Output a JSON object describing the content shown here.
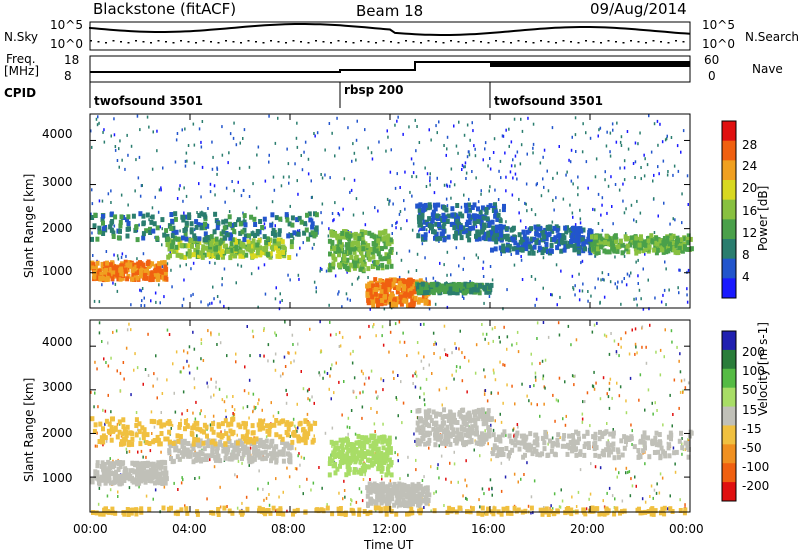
{
  "header": {
    "radar": "Blackstone (fitACF)",
    "beam": "Beam 18",
    "date": "09/Aug/2014"
  },
  "top_panels": {
    "nsky_label": "N.Sky",
    "nsearch_label": "N.Search",
    "nsky_ticks": [
      "10^5",
      "10^0"
    ],
    "nsearch_ticks": [
      "10^5",
      "10^0"
    ],
    "freq_label_line1": "Freq.",
    "freq_label_line2": "[MHz]",
    "freq_ticks": [
      "18",
      "8"
    ],
    "nave_label": "Nave",
    "nave_ticks": [
      "60",
      "0"
    ],
    "cpid_label": "CPID",
    "cpid_segments": [
      {
        "name": "twofsound 3501",
        "start_h": 0,
        "end_h": 10
      },
      {
        "name": "rbsp 200",
        "start_h": 10,
        "end_h": 16
      },
      {
        "name": "twofsound 3501",
        "start_h": 16,
        "end_h": 24
      }
    ]
  },
  "chart_data": [
    {
      "type": "heatmap",
      "title": "",
      "quantity": "Power",
      "ylabel": "Slant Range [km]",
      "ylim": [
        200,
        4600
      ],
      "y_ticks": [
        "4000",
        "3000",
        "2000",
        "1000"
      ],
      "y_tick_values": [
        4000,
        3000,
        2000,
        1000
      ],
      "colorbar_label": "Power [dB]",
      "colorbar_ticks": [
        "28",
        "24",
        "20",
        "16",
        "12",
        "8",
        "4"
      ],
      "colorbar_colors": [
        "#1a1aff",
        "#2255cc",
        "#2a7d6e",
        "#4aa04a",
        "#88c040",
        "#d8d820",
        "#f0a020",
        "#f06010",
        "#e01010"
      ],
      "bands": [
        {
          "h": [
            0,
            3
          ],
          "r": [
            900,
            1300
          ],
          "v": 26
        },
        {
          "h": [
            3,
            8
          ],
          "r": [
            1400,
            1800
          ],
          "v": 16
        },
        {
          "h": [
            0,
            9
          ],
          "r": [
            1800,
            2400
          ],
          "v": 8
        },
        {
          "h": [
            9.5,
            12
          ],
          "r": [
            1100,
            2000
          ],
          "v": 14
        },
        {
          "h": [
            11,
            13.5
          ],
          "r": [
            300,
            900
          ],
          "v": 26
        },
        {
          "h": [
            13,
            16
          ],
          "r": [
            600,
            800
          ],
          "v": 10
        },
        {
          "h": [
            13,
            16.5
          ],
          "r": [
            1800,
            2600
          ],
          "v": 6
        },
        {
          "h": [
            16,
            20
          ],
          "r": [
            1500,
            2100
          ],
          "v": 6
        },
        {
          "h": [
            20,
            24
          ],
          "r": [
            1500,
            1900
          ],
          "v": 14
        }
      ]
    },
    {
      "type": "heatmap",
      "title": "",
      "quantity": "Velocity",
      "ylabel": "Slant Range [km]",
      "xlabel": "Time UT",
      "ylim": [
        200,
        4600
      ],
      "x_ticks": [
        "00:00",
        "04:00",
        "08:00",
        "12:00",
        "16:00",
        "20:00",
        "00:00"
      ],
      "x_tick_values": [
        0,
        4,
        8,
        12,
        16,
        20,
        24
      ],
      "y_ticks": [
        "4000",
        "3000",
        "2000",
        "1000"
      ],
      "y_tick_values": [
        4000,
        3000,
        2000,
        1000
      ],
      "colorbar_label": "Velocity [m s-1]",
      "colorbar_ticks": [
        "200",
        "100",
        "50",
        "15",
        "-15",
        "-50",
        "-100",
        "-200"
      ],
      "colorbar_colors": [
        "#2020b0",
        "#2a7d3a",
        "#55bb44",
        "#a8dd66",
        "#c0c0b8",
        "#f0c040",
        "#f09020",
        "#f06010",
        "#e01010"
      ],
      "bands": [
        {
          "h": [
            0,
            3
          ],
          "r": [
            900,
            1400
          ],
          "v": 0
        },
        {
          "h": [
            3,
            8
          ],
          "r": [
            1400,
            1900
          ],
          "v": 0
        },
        {
          "h": [
            0,
            9
          ],
          "r": [
            1800,
            2400
          ],
          "v": -60
        },
        {
          "h": [
            9.5,
            12
          ],
          "r": [
            1100,
            2000
          ],
          "v": 40
        },
        {
          "h": [
            11,
            13.5
          ],
          "r": [
            400,
            900
          ],
          "v": 0
        },
        {
          "h": [
            13,
            16
          ],
          "r": [
            1800,
            2600
          ],
          "v": 0
        },
        {
          "h": [
            16,
            24
          ],
          "r": [
            1500,
            2100
          ],
          "v": 0
        },
        {
          "h": [
            0,
            24
          ],
          "r": [
            200,
            350
          ],
          "v": -60
        }
      ]
    }
  ]
}
